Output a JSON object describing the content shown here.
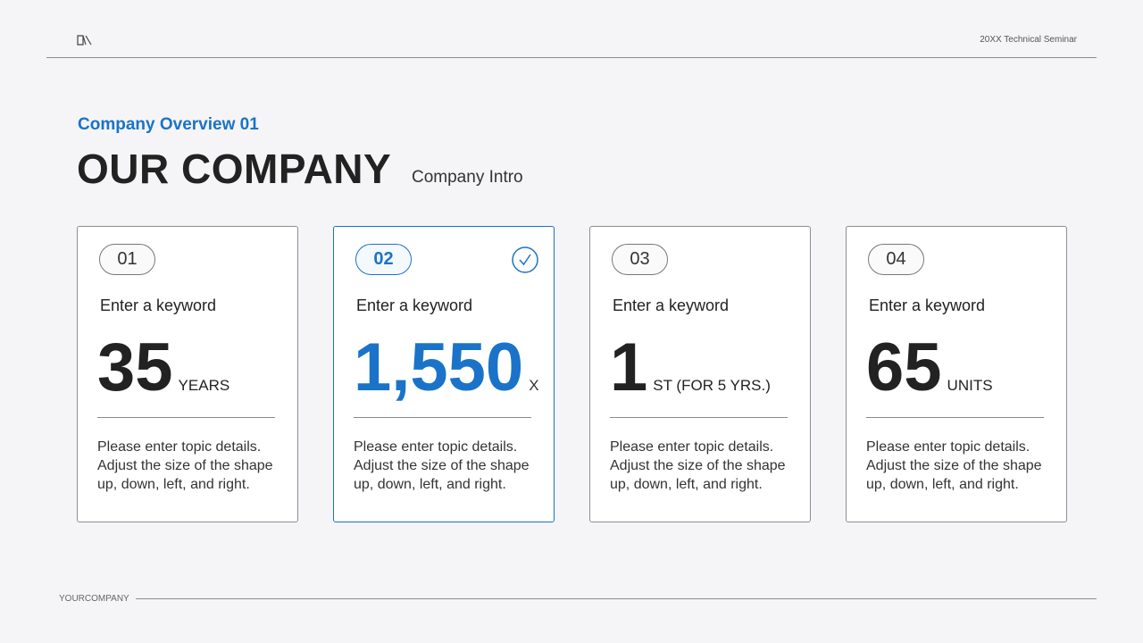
{
  "header": {
    "logo_icon": "book-logo-icon",
    "seminar_label": "20XX Technical Seminar"
  },
  "hero": {
    "eyebrow": "Company Overview 01",
    "title": "OUR COMPANY",
    "subtitle": "Company Intro"
  },
  "cards": [
    {
      "number": "01",
      "keyword": "Enter a keyword",
      "value": "35",
      "unit": "YEARS",
      "description": "Please enter topic details. Adjust the size of the shape up, down, left, and right.",
      "selected": false
    },
    {
      "number": "02",
      "keyword": "Enter a keyword",
      "value": "1,550",
      "unit": "X",
      "description": "Please enter topic details. Adjust the size of the shape up, down, left, and right.",
      "selected": true
    },
    {
      "number": "03",
      "keyword": "Enter a keyword",
      "value": "1",
      "unit": "ST (FOR 5 YRS.)",
      "description": "Please enter topic details. Adjust the size of the shape up, down, left, and right.",
      "selected": false
    },
    {
      "number": "04",
      "keyword": "Enter a keyword",
      "value": "65",
      "unit": "UNITS",
      "description": "Please enter topic details. Adjust the size of the shape up, down, left, and right.",
      "selected": false
    }
  ],
  "footer": {
    "company": "YOURCOMPANY"
  },
  "colors": {
    "accent": "#1a73c8",
    "text": "#222222",
    "background": "#f5f5f7",
    "card_border": "#8e8e8e"
  }
}
